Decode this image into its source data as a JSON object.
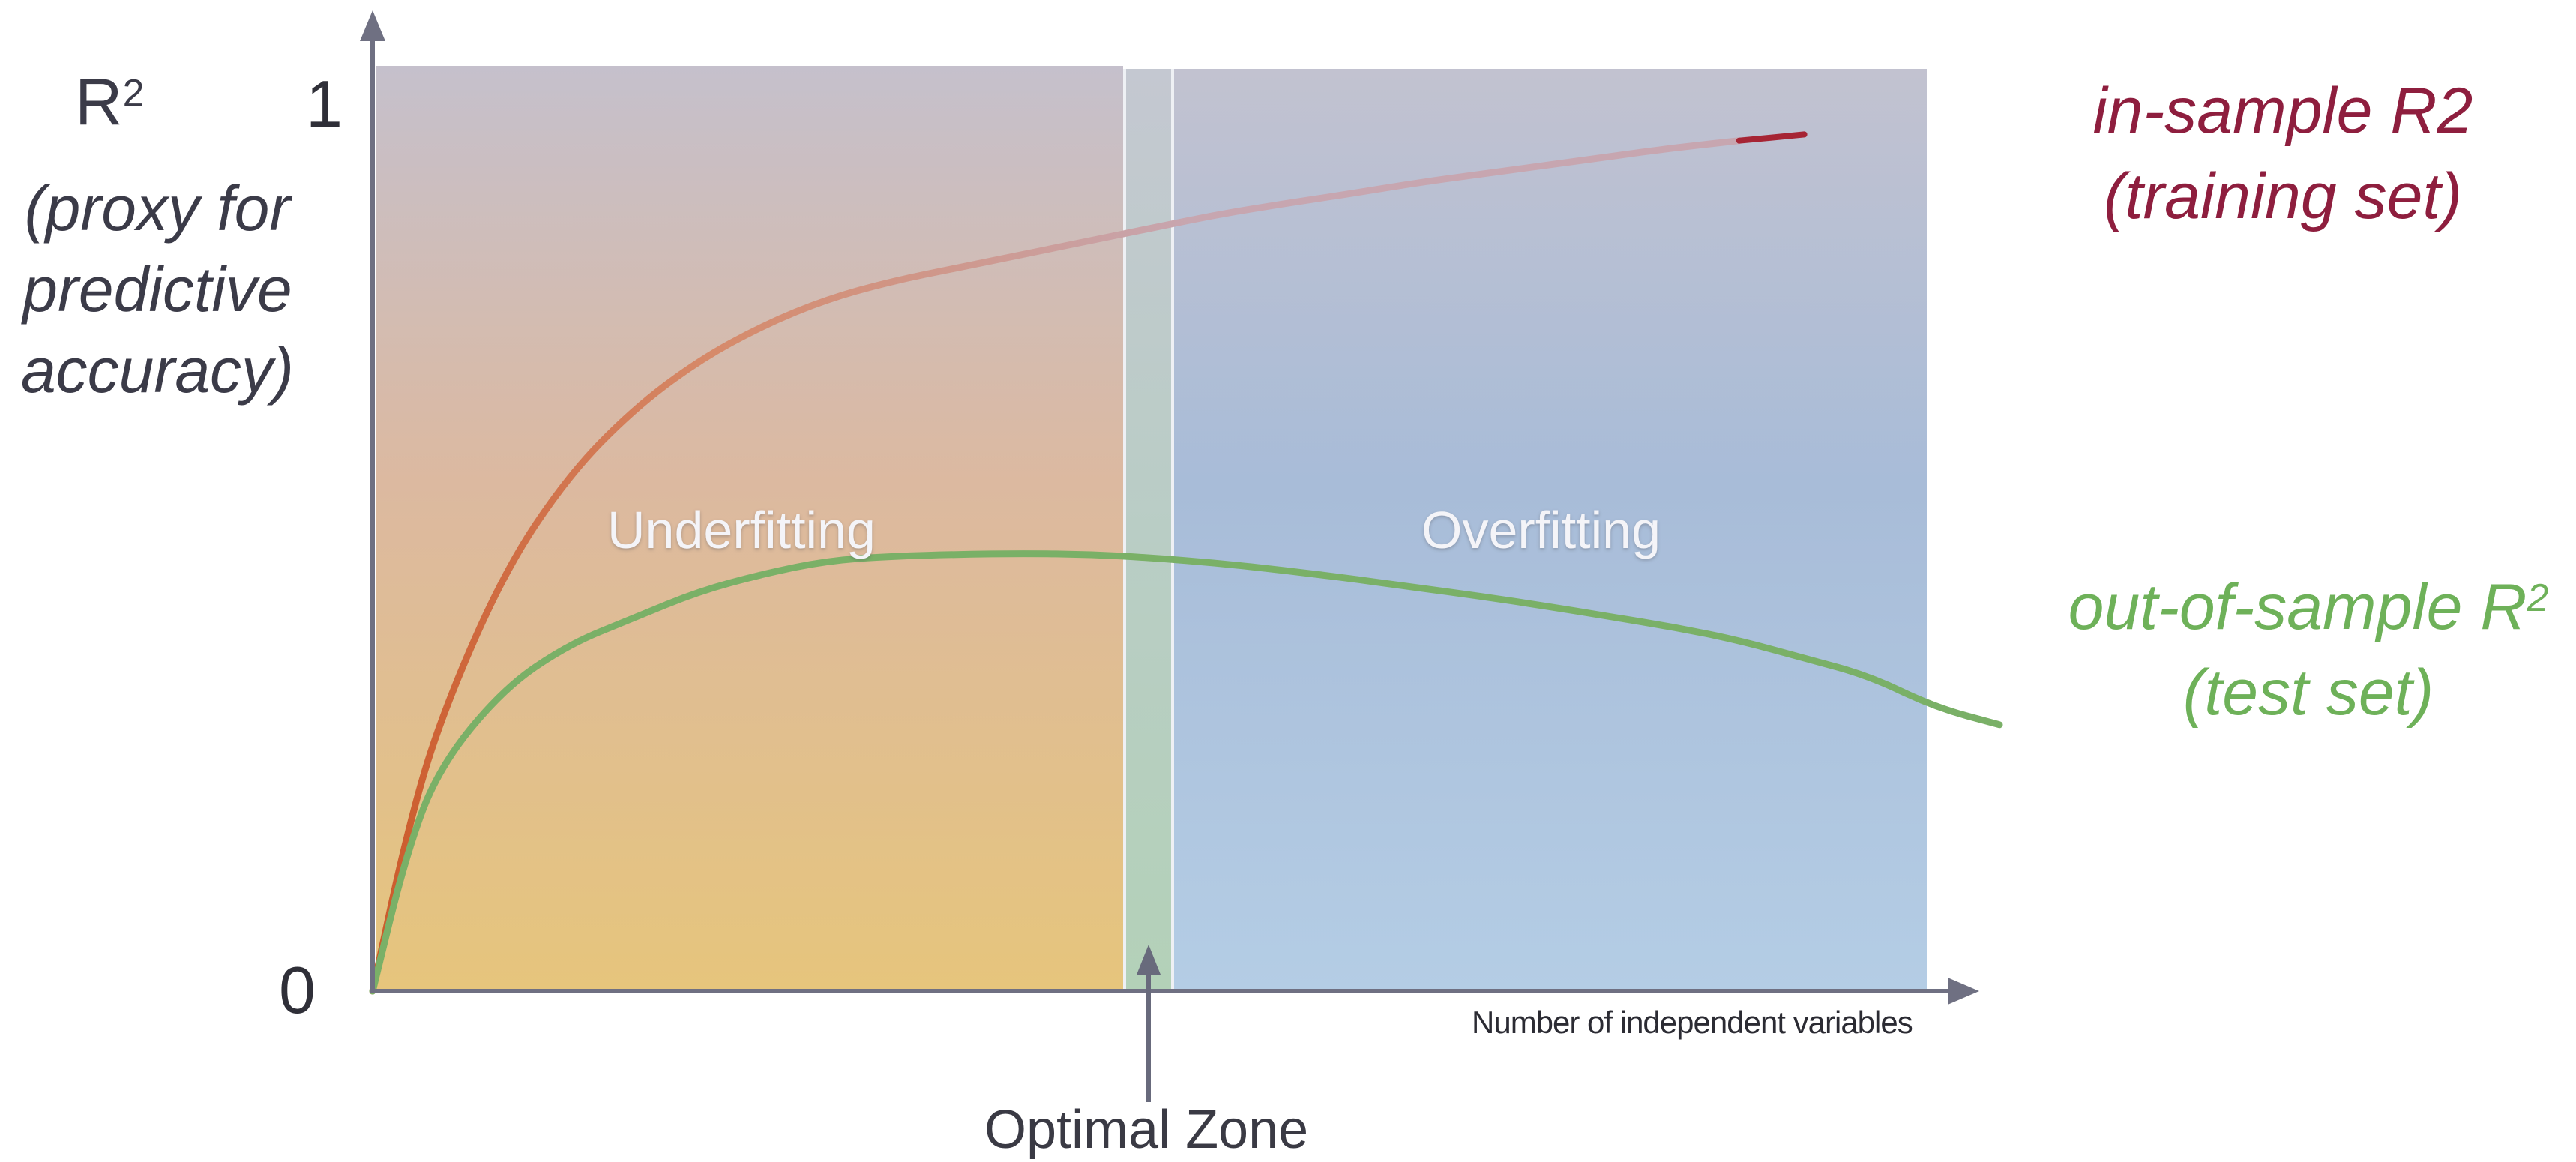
{
  "y_axis": {
    "symbol": "R",
    "symbol_sup": "2",
    "desc_lines": [
      "(proxy for",
      "predictive",
      "accuracy)"
    ],
    "tick_top": "1",
    "tick_bottom": "0"
  },
  "x_axis": {
    "label": "Number of independent variables"
  },
  "zones": {
    "under": "Underfitting",
    "over": "Overfitting",
    "optimal": "Optimal Zone"
  },
  "legend": {
    "in_sample_line1": "in-sample R2",
    "in_sample_line2": "(training set)",
    "out_sample_line1": "out-of-sample R",
    "out_sample_sup": "2",
    "out_sample_line2": "(test set)"
  },
  "colors": {
    "in_sample": "#8e1e3e",
    "out_sample": "#6eb159",
    "axis": "#6f7082"
  },
  "chart_data": {
    "type": "line",
    "xlabel": "Number of independent variables",
    "ylabel": "R2",
    "ylim": [
      0,
      1
    ],
    "series": [
      {
        "name": "in-sample R2",
        "x": [
          0,
          0.5,
          1,
          2,
          3,
          4,
          5,
          6,
          7,
          8,
          9,
          10,
          11,
          12,
          13,
          14,
          15,
          16,
          17,
          18,
          19,
          20,
          21,
          22
        ],
        "values": [
          0,
          0.17,
          0.3,
          0.47,
          0.58,
          0.655,
          0.71,
          0.75,
          0.78,
          0.8,
          0.815,
          0.83,
          0.845,
          0.86,
          0.875,
          0.887,
          0.898,
          0.91,
          0.92,
          0.93,
          0.94,
          0.95,
          0.958,
          0.965
        ]
      },
      {
        "name": "out-of-sample R2",
        "x": [
          0,
          0.5,
          1,
          2,
          3,
          4,
          5,
          6,
          7,
          8,
          9,
          10,
          11,
          12,
          13,
          14,
          15,
          16,
          17,
          18,
          19,
          20,
          21,
          22,
          23,
          24,
          25
        ],
        "values": [
          0,
          0.15,
          0.25,
          0.34,
          0.39,
          0.42,
          0.45,
          0.47,
          0.485,
          0.49,
          0.492,
          0.493,
          0.492,
          0.488,
          0.482,
          0.474,
          0.465,
          0.455,
          0.445,
          0.434,
          0.422,
          0.41,
          0.395,
          0.375,
          0.355,
          0.32,
          0.3
        ]
      }
    ],
    "optimal_zone": [
      10.5,
      11.15
    ]
  }
}
